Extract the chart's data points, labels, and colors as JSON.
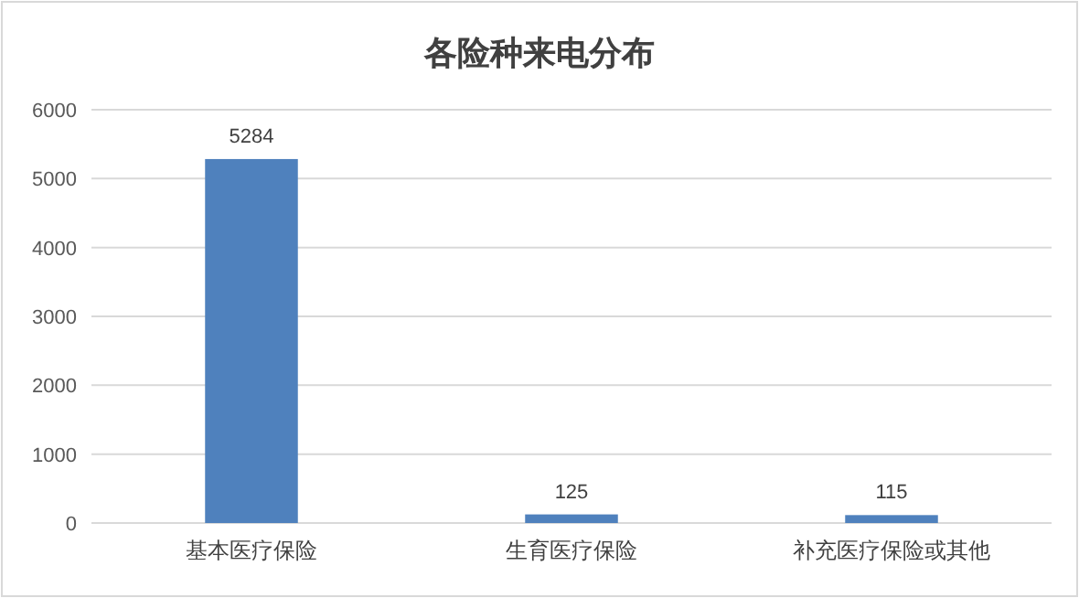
{
  "chart_data": {
    "type": "bar",
    "title": "各险种来电分布",
    "categories": [
      "基本医疗保险",
      "生育医疗保险",
      "补充医疗保险或其他"
    ],
    "values": [
      5284,
      125,
      115
    ],
    "color": "#4f81bd",
    "ylim": [
      0,
      6000
    ],
    "yticks": [
      0,
      1000,
      2000,
      3000,
      4000,
      5000,
      6000
    ],
    "grid": "y",
    "data_labels": true
  }
}
